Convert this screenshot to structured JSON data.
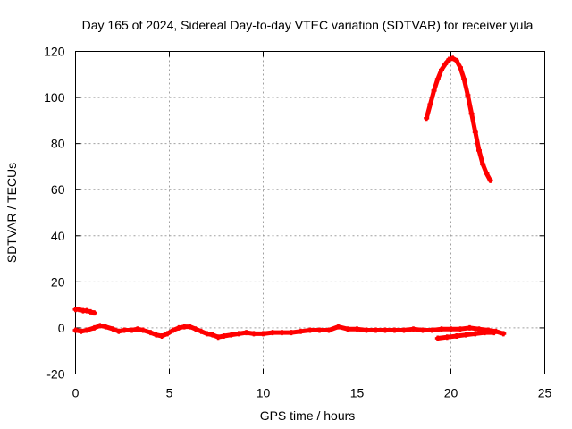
{
  "chart_data": {
    "type": "scatter",
    "title": "Day 165 of 2024, Sidereal Day-to-day VTEC variation (SDTVAR) for receiver yula",
    "xlabel": "GPS time / hours",
    "ylabel": "SDTVAR / TECUs",
    "xlim": [
      0,
      25
    ],
    "ylim": [
      -20,
      120
    ],
    "xticks": [
      0,
      5,
      10,
      15,
      20,
      25
    ],
    "yticks": [
      -20,
      0,
      20,
      40,
      60,
      80,
      100,
      120
    ],
    "grid": true,
    "color": "#ff0000",
    "series": [
      {
        "name": "baseline",
        "x": [
          0.0,
          0.3,
          0.6,
          1.0,
          1.3,
          1.6,
          2.0,
          2.3,
          2.6,
          3.0,
          3.3,
          3.6,
          4.0,
          4.3,
          4.6,
          4.9,
          5.2,
          5.5,
          5.8,
          6.1,
          6.4,
          6.7,
          7.0,
          7.3,
          7.6,
          7.9,
          8.3,
          8.7,
          9.1,
          9.5,
          10.0,
          10.5,
          11.0,
          11.5,
          12.0,
          12.5,
          13.0,
          13.5,
          14.0,
          14.5,
          15.0,
          15.5,
          16.0,
          16.5,
          17.0,
          17.5,
          18.0,
          18.5,
          19.0,
          19.5,
          20.0,
          20.5,
          21.0,
          21.5,
          22.0,
          22.4,
          22.8
        ],
        "y": [
          -1.0,
          -1.5,
          -1.0,
          0.0,
          1.0,
          0.5,
          -0.5,
          -1.5,
          -1.0,
          -1.0,
          -0.5,
          -1.0,
          -2.0,
          -3.0,
          -3.5,
          -2.5,
          -1.0,
          0.0,
          0.5,
          0.5,
          -0.5,
          -1.5,
          -2.5,
          -3.0,
          -4.0,
          -3.5,
          -3.0,
          -2.5,
          -2.0,
          -2.5,
          -2.5,
          -2.0,
          -2.0,
          -2.0,
          -1.5,
          -1.0,
          -1.0,
          -1.0,
          0.5,
          -0.5,
          -0.5,
          -1.0,
          -1.0,
          -1.0,
          -1.0,
          -1.0,
          -0.5,
          -1.0,
          -1.0,
          -0.5,
          -0.5,
          -0.5,
          0.0,
          -0.5,
          -1.0,
          -1.5,
          -2.5
        ]
      },
      {
        "name": "initial-offset",
        "x": [
          0.0,
          0.2,
          0.4,
          0.6,
          0.8,
          1.0
        ],
        "y": [
          8.0,
          8.0,
          7.5,
          7.5,
          7.0,
          6.5
        ]
      },
      {
        "name": "lower-branch",
        "x": [
          19.3,
          19.8,
          20.3,
          20.8,
          21.3,
          21.8,
          22.3
        ],
        "y": [
          -4.5,
          -4.0,
          -3.5,
          -3.0,
          -2.5,
          -2.0,
          -2.0
        ]
      },
      {
        "name": "peak",
        "x": [
          18.7,
          18.9,
          19.1,
          19.3,
          19.5,
          19.7,
          19.9,
          20.1,
          20.3,
          20.5,
          20.7,
          20.9,
          21.1,
          21.3,
          21.5,
          21.7,
          21.9,
          22.1
        ],
        "y": [
          91,
          97,
          103,
          108,
          112,
          114.5,
          116.5,
          117,
          116,
          113,
          108,
          101,
          93,
          85,
          77,
          71,
          67,
          64
        ]
      }
    ]
  }
}
